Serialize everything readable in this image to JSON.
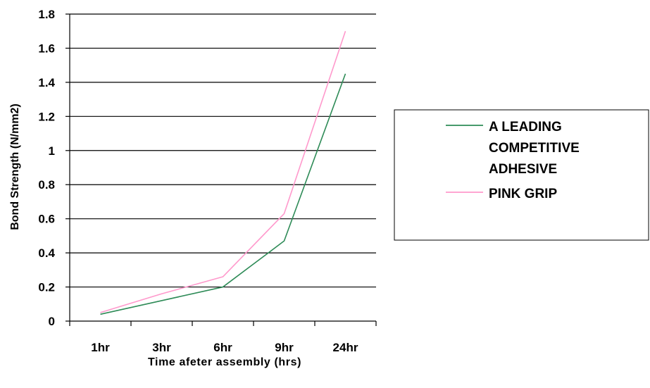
{
  "chart_data": {
    "type": "line",
    "categories": [
      "1hr",
      "3hr",
      "6hr",
      "9hr",
      "24hr"
    ],
    "xlabel": "Time afeter assembly (hrs)",
    "ylabel": "Bond Strength (N/mm2)",
    "ylim": [
      0,
      1.8
    ],
    "yticks": [
      "0",
      "0.2",
      "0.4",
      "0.6",
      "0.8",
      "1",
      "1.2",
      "1.4",
      "1.6",
      "1.8"
    ],
    "grid": "horizontal",
    "legend_position": "right",
    "series": [
      {
        "name": "A LEADING COMPETITIVE ADHESIVE",
        "name_lines": [
          "A LEADING",
          "COMPETITIVE",
          "ADHESIVE"
        ],
        "color": "#2e8b57",
        "values": [
          0.04,
          0.12,
          0.2,
          0.47,
          1.45
        ]
      },
      {
        "name": "PINK GRIP",
        "name_lines": [
          "PINK GRIP"
        ],
        "color": "#ff99cc",
        "values": [
          0.05,
          0.16,
          0.26,
          0.63,
          1.7
        ]
      }
    ]
  }
}
